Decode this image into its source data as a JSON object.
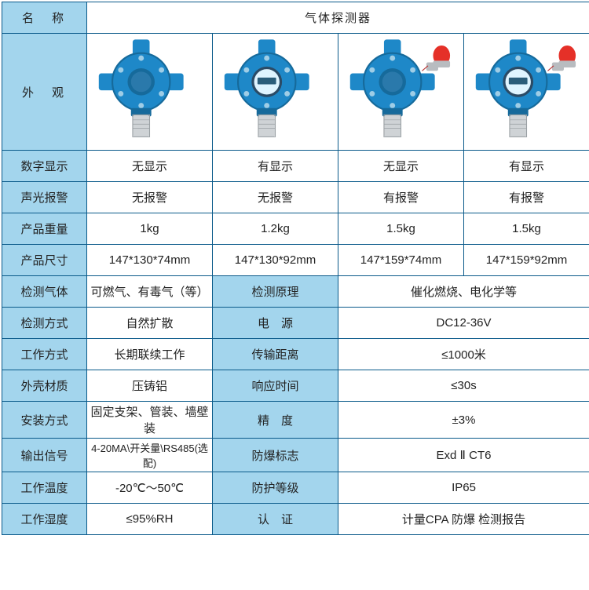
{
  "table": {
    "colors": {
      "header_bg": "#a3d5ed",
      "cell_bg": "#ffffff",
      "border": "#0a5a8a",
      "text": "#222222"
    },
    "title_label": "名　称",
    "title_value": "气体探测器",
    "appearance_label": "外　观",
    "rows4": [
      {
        "label": "数字显示",
        "v": [
          "无显示",
          "有显示",
          "无显示",
          "有显示"
        ]
      },
      {
        "label": "声光报警",
        "v": [
          "无报警",
          "无报警",
          "有报警",
          "有报警"
        ]
      },
      {
        "label": "产品重量",
        "v": [
          "1kg",
          "1.2kg",
          "1.5kg",
          "1.5kg"
        ]
      },
      {
        "label": "产品尺寸",
        "v": [
          "147*130*74mm",
          "147*130*92mm",
          "147*159*74mm",
          "147*159*92mm"
        ]
      }
    ],
    "rows2": [
      {
        "l1": "检测气体",
        "v1": "可燃气、有毒气（等）",
        "l2": "检测原理",
        "v2": "催化燃烧、电化学等"
      },
      {
        "l1": "检测方式",
        "v1": "自然扩散",
        "l2": "电　源",
        "v2": "DC12-36V"
      },
      {
        "l1": "工作方式",
        "v1": "长期联续工作",
        "l2": "传输距离",
        "v2": "≤1000米"
      },
      {
        "l1": "外壳材质",
        "v1": "压铸铝",
        "l2": "响应时间",
        "v2": "≤30s"
      },
      {
        "l1": "安装方式",
        "v1": "固定支架、管装、墙壁装",
        "l2": "精　度",
        "v2": "±3%"
      },
      {
        "l1": "输出信号",
        "v1": "4-20MA\\开关量\\RS485(选配)",
        "l2": "防爆标志",
        "v2": "Exd Ⅱ CT6"
      },
      {
        "l1": "工作温度",
        "v1": "-20℃～50℃",
        "l2": "防护等级",
        "v2": "IP65"
      },
      {
        "l1": "工作湿度",
        "v1": "≤95%RH",
        "l2": "认　证",
        "v2": "计量CPA 防爆 检测报告"
      }
    ],
    "product_images": [
      {
        "has_display": false,
        "has_beacon": false
      },
      {
        "has_display": true,
        "has_beacon": false
      },
      {
        "has_display": false,
        "has_beacon": true
      },
      {
        "has_display": true,
        "has_beacon": true
      }
    ],
    "svg_colors": {
      "body": "#1e88c8",
      "body_dark": "#166a9b",
      "bolt": "#9fcde6",
      "sensor": "#cfd3d6",
      "sensor_dark": "#9aa0a4",
      "screen_bg": "#dff4ff",
      "screen_border": "#2b4b66",
      "beacon_red": "#e53028",
      "beacon_base": "#b8bcc0"
    }
  }
}
